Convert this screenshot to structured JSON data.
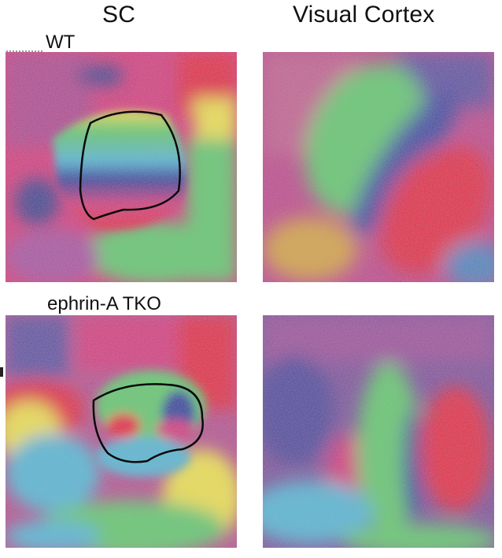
{
  "columns": {
    "left_title": "SC",
    "right_title": "Visual Cortex"
  },
  "rows": {
    "top_label": "WT",
    "bottom_label": "ephrin-A TKO"
  },
  "colors": {
    "red": "#e8233c",
    "magenta": "#d8337a",
    "purple": "#7a3f9a",
    "blue": "#2f3a9a",
    "cyan": "#4fb6d8",
    "green": "#5dc96a",
    "yellow": "#f2e34a",
    "outline": "#0a0a0a"
  }
}
